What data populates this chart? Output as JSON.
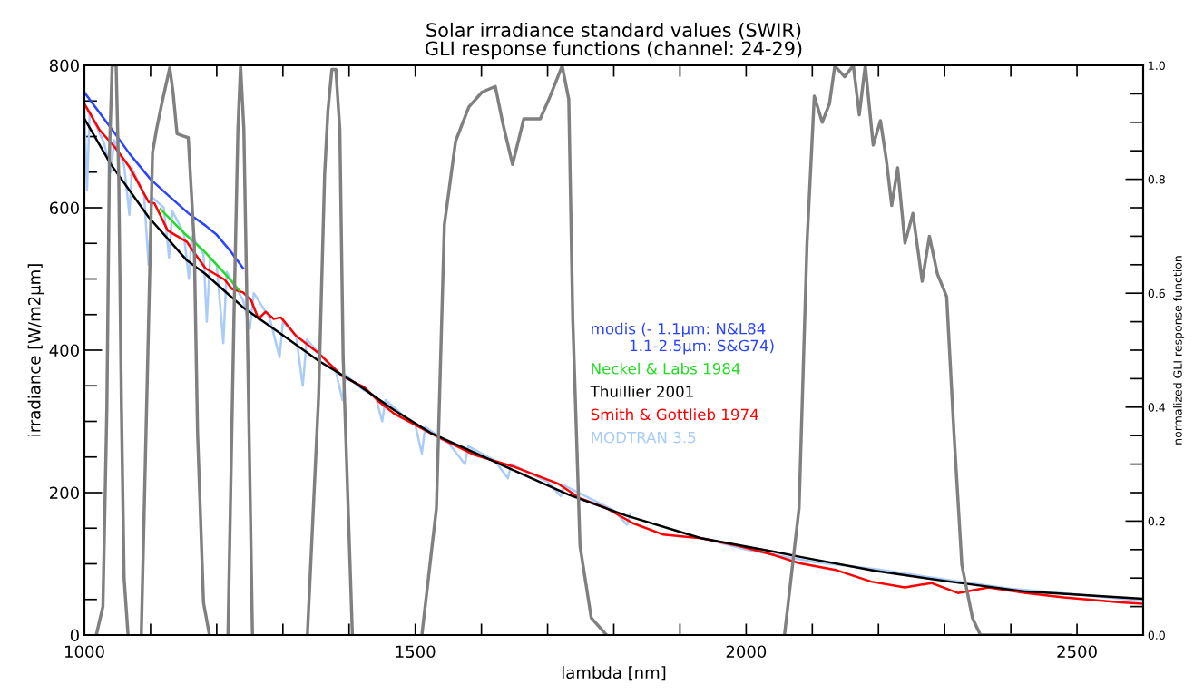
{
  "chart_data": {
    "type": "line",
    "title": "Solar irradiance standard values (SWIR)\nGLI response functions (channel: 24-29)",
    "xlabel": "lambda [nm]",
    "ylabel": "irradiance [W/m2μm]",
    "y2label": "normalized GLI response function",
    "xlim": [
      1000,
      2600
    ],
    "xticks": [
      1000,
      {
        "value": 1100,
        "label": null
      },
      {
        "value": 1200,
        "label": null
      },
      {
        "value": 1300,
        "label": null
      },
      {
        "value": 1400,
        "label": null
      },
      1500,
      {
        "value": 1600,
        "label": null
      },
      {
        "value": 1700,
        "label": null
      },
      {
        "value": 1800,
        "label": null
      },
      {
        "value": 1900,
        "label": null
      },
      2000,
      {
        "value": 2100,
        "label": null
      },
      {
        "value": 2200,
        "label": null
      },
      {
        "value": 2300,
        "label": null
      },
      {
        "value": 2400,
        "label": null
      },
      2500
    ],
    "ylim": [
      0,
      800
    ],
    "yticks": [
      0,
      {
        "value": 50,
        "label": null
      },
      {
        "value": 100,
        "label": null
      },
      {
        "value": 150,
        "label": null
      },
      200,
      {
        "value": 250,
        "label": null
      },
      {
        "value": 300,
        "label": null
      },
      {
        "value": 350,
        "label": null
      },
      400,
      {
        "value": 450,
        "label": null
      },
      {
        "value": 500,
        "label": null
      },
      {
        "value": 550,
        "label": null
      },
      600,
      {
        "value": 650,
        "label": null
      },
      {
        "value": 700,
        "label": null
      },
      {
        "value": 750,
        "label": null
      },
      800
    ],
    "y2lim": [
      0,
      1
    ],
    "y2ticks": [
      {
        "value": 0,
        "label": "0.0"
      },
      {
        "value": 0.05,
        "label": null
      },
      {
        "value": 0.1,
        "label": null
      },
      {
        "value": 0.15,
        "label": null
      },
      0.2,
      {
        "value": 0.25,
        "label": null
      },
      {
        "value": 0.3,
        "label": null
      },
      {
        "value": 0.35,
        "label": null
      },
      0.4,
      {
        "value": 0.45,
        "label": null
      },
      {
        "value": 0.5,
        "label": null
      },
      {
        "value": 0.55,
        "label": null
      },
      0.6,
      {
        "value": 0.65,
        "label": null
      },
      {
        "value": 0.7,
        "label": null
      },
      {
        "value": 0.75,
        "label": null
      },
      0.8,
      {
        "value": 0.85,
        "label": null
      },
      {
        "value": 0.9,
        "label": null
      },
      {
        "value": 0.95,
        "label": null
      },
      {
        "value": 1,
        "label": "1.0"
      }
    ],
    "grid": false,
    "legend": "center",
    "marker": "none",
    "line_style": "solid",
    "series": [
      {
        "name": "modis (- 1.1µm: N&L84\n        1.1-2.5µm: S&G74)",
        "color": "#2a45ff",
        "x": [
          1000,
          1040,
          1069,
          1100,
          1126,
          1160,
          1183,
          1200,
          1220,
          1240
        ],
        "values": [
          762,
          712,
          675,
          640,
          618,
          590,
          575,
          562,
          540,
          515
        ]
      },
      {
        "name": "Neckel & Labs 1984",
        "color": "#22dd22",
        "x": [
          1115,
          1150,
          1180,
          1210,
          1234
        ],
        "values": [
          598,
          565,
          540,
          510,
          484
        ]
      },
      {
        "name": "Thuillier 2001",
        "color": "#000000",
        "x": [
          1000,
          1040,
          1097,
          1155,
          1183,
          1240,
          1297,
          1354,
          1411,
          1468,
          1523,
          1647,
          1732,
          1818,
          1932,
          2043,
          2080,
          2195,
          2308,
          2423,
          2566,
          2600
        ],
        "values": [
          725,
          661,
          587,
          526,
          507,
          460,
          423,
          385,
          353,
          316,
          284,
          232,
          197,
          168,
          136,
          117,
          110,
          90,
          75,
          61,
          53,
          51
        ]
      },
      {
        "name": "Smith & Gottlieb 1974",
        "color": "#ff0000",
        "x": [
          1000,
          1023,
          1046,
          1069,
          1097,
          1106,
          1126,
          1155,
          1166,
          1183,
          1212,
          1223,
          1240,
          1252,
          1263,
          1274,
          1286,
          1297,
          1320,
          1354,
          1389,
          1423,
          1446,
          1468,
          1532,
          1589,
          1647,
          1715,
          1749,
          1789,
          1829,
          1875,
          1932,
          1989,
          2043,
          2080,
          2137,
          2189,
          2240,
          2280,
          2320,
          2366,
          2423,
          2480,
          2566,
          2600
        ],
        "values": [
          746,
          709,
          685,
          656,
          608,
          606,
          568,
          552,
          537,
          515,
          499,
          486,
          481,
          470,
          444,
          454,
          444,
          446,
          420,
          396,
          364,
          348,
          327,
          311,
          279,
          253,
          237,
          213,
          192,
          178,
          157,
          141,
          136,
          125,
          112,
          101,
          91,
          75,
          67,
          73,
          59,
          67,
          59,
          53,
          46,
          44
        ]
      },
      {
        "name": "MODTRAN 3.5",
        "color": "#aaccf8",
        "x": [
          1000,
          1004,
          1008,
          1030,
          1040,
          1045,
          1060,
          1068,
          1072,
          1090,
          1097,
          1102,
          1120,
          1128,
          1133,
          1150,
          1158,
          1162,
          1180,
          1185,
          1190,
          1200,
          1210,
          1215,
          1240,
          1250,
          1256,
          1280,
          1295,
          1300,
          1320,
          1330,
          1336,
          1360,
          1380,
          1390,
          1395,
          1420,
          1440,
          1450,
          1455,
          1480,
          1500,
          1510,
          1515,
          1550,
          1575,
          1580,
          1620,
          1640,
          1645,
          1700,
          1720,
          1725,
          1800,
          1820,
          1825,
          1900,
          1950,
          2000,
          2100,
          2200,
          2300,
          2400,
          2500,
          2600
        ],
        "values": [
          740,
          625,
          735,
          690,
          650,
          695,
          660,
          590,
          655,
          620,
          520,
          615,
          600,
          530,
          595,
          565,
          500,
          560,
          535,
          440,
          530,
          520,
          410,
          510,
          470,
          430,
          480,
          445,
          390,
          440,
          420,
          350,
          415,
          390,
          370,
          330,
          365,
          345,
          335,
          300,
          330,
          310,
          295,
          255,
          292,
          270,
          240,
          265,
          245,
          220,
          240,
          215,
          195,
          210,
          175,
          155,
          170,
          null,
          132,
          120,
          103,
          92,
          78,
          65,
          57,
          48
        ]
      },
      {
        "color": "#808080",
        "axis": "y2",
        "x": [
          1018,
          1028,
          1034,
          1038,
          1042,
          1048,
          1052,
          1056,
          1060,
          1066
        ],
        "values": [
          0,
          0.05,
          0.4,
          0.85,
          1.0,
          1.0,
          0.8,
          0.4,
          0.1,
          0
        ]
      },
      {
        "color": "#808080",
        "axis": "y2",
        "x": [
          1086,
          1103,
          1109,
          1117,
          1126,
          1129,
          1134,
          1140,
          1149,
          1157,
          1166,
          1171,
          1180,
          1189
        ],
        "values": [
          0,
          0.847,
          0.887,
          0.933,
          0.98,
          0.996,
          0.953,
          0.88,
          0.876,
          0.873,
          0.688,
          0.356,
          0.057,
          0
        ]
      },
      {
        "color": "#808080",
        "axis": "y2",
        "x": [
          1217,
          1226,
          1232,
          1236,
          1241,
          1246,
          1254
        ],
        "values": [
          0,
          0.555,
          0.887,
          1.0,
          0.887,
          0.555,
          0
        ]
      },
      {
        "color": "#808080",
        "axis": "y2",
        "x": [
          1337,
          1354,
          1363,
          1368,
          1374,
          1380,
          1386,
          1391,
          1405
        ],
        "values": [
          0,
          0.42,
          0.807,
          0.92,
          0.993,
          0.993,
          0.887,
          0.489,
          0
        ]
      },
      {
        "color": "#808080",
        "axis": "y2",
        "x": [
          1510,
          1532,
          1544,
          1561,
          1581,
          1601,
          1621,
          1632,
          1647,
          1664,
          1689,
          1704,
          1722,
          1732,
          1738,
          1749,
          1766,
          1789
        ],
        "values": [
          0,
          0.223,
          0.72,
          0.867,
          0.927,
          0.953,
          0.963,
          0.9,
          0.826,
          0.906,
          0.906,
          0.946,
          0.999,
          0.94,
          0.555,
          0.156,
          0.03,
          0
        ]
      },
      {
        "color": "#808080",
        "axis": "y2",
        "x": [
          2058,
          2080,
          2092,
          2103,
          2115,
          2126,
          2134,
          2149,
          2162,
          2171,
          2180,
          2192,
          2203,
          2212,
          2220,
          2229,
          2240,
          2252,
          2266,
          2277,
          2289,
          2303,
          2314,
          2326,
          2342,
          2354,
          2491
        ],
        "values": [
          0,
          0.223,
          0.688,
          0.946,
          0.9,
          0.933,
          0.999,
          0.98,
          1.0,
          0.913,
          1.0,
          0.86,
          0.903,
          0.833,
          0.754,
          0.82,
          0.688,
          0.74,
          0.621,
          0.7,
          0.634,
          0.594,
          0.356,
          0.123,
          0.03,
          0,
          0
        ]
      }
    ]
  }
}
